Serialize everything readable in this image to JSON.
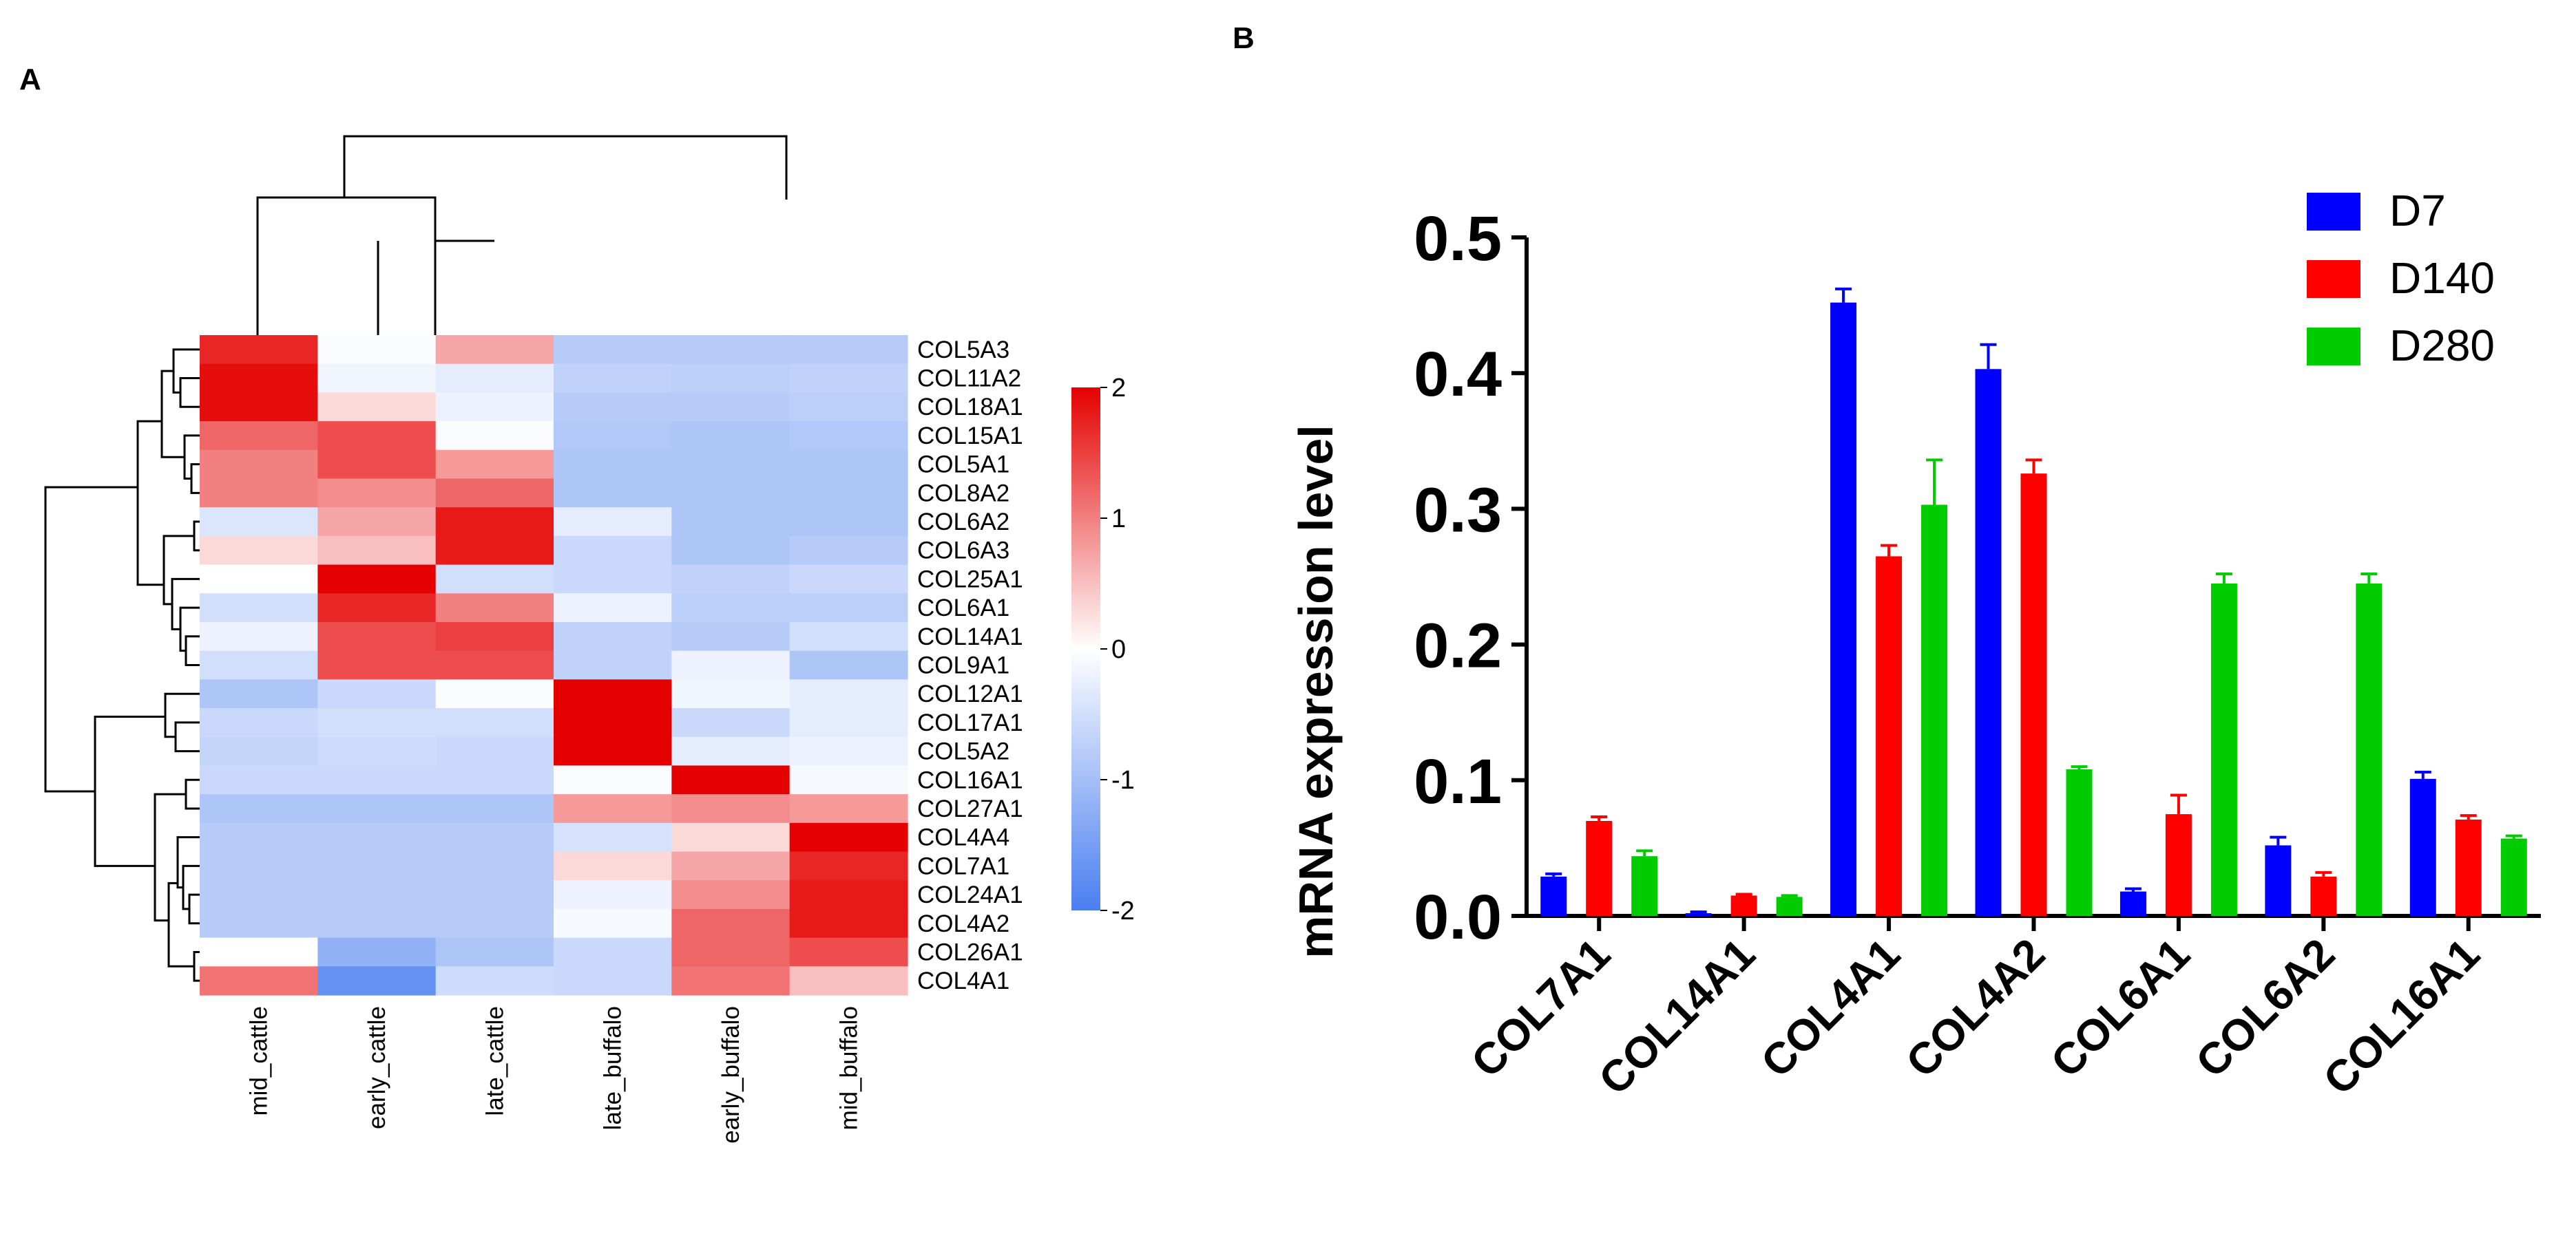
{
  "panel_a_label": "A",
  "panel_b_label": "B",
  "chart_data": [
    {
      "type": "heatmap",
      "title": "",
      "columns": [
        "mid_cattle",
        "early_cattle",
        "late_cattle",
        "late_buffalo",
        "early_buffalo",
        "mid_buffalo"
      ],
      "rows": [
        "COL5A3",
        "COL11A2",
        "COL18A1",
        "COL15A1",
        "COL5A1",
        "COL8A2",
        "COL6A2",
        "COL6A3",
        "COL25A1",
        "COL6A1",
        "COL14A1",
        "COL9A1",
        "COL12A1",
        "COL17A1",
        "COL5A2",
        "COL16A1",
        "COL27A1",
        "COL4A4",
        "COL7A1",
        "COL24A1",
        "COL4A2",
        "COL26A1",
        "COL4A1"
      ],
      "values": [
        [
          1.7,
          -0.05,
          0.7,
          -0.8,
          -0.8,
          -0.8
        ],
        [
          1.9,
          -0.15,
          -0.3,
          -0.7,
          -0.75,
          -0.7
        ],
        [
          1.9,
          0.3,
          -0.2,
          -0.8,
          -0.8,
          -0.75
        ],
        [
          1.2,
          1.4,
          -0.05,
          -0.85,
          -0.9,
          -0.85
        ],
        [
          1.0,
          1.4,
          0.8,
          -0.9,
          -0.9,
          -0.9
        ],
        [
          1.0,
          0.9,
          1.2,
          -0.9,
          -0.9,
          -0.9
        ],
        [
          -0.4,
          0.7,
          1.8,
          -0.3,
          -0.9,
          -0.9
        ],
        [
          0.3,
          0.5,
          1.8,
          -0.6,
          -0.9,
          -0.8
        ],
        [
          0.0,
          2.0,
          -0.5,
          -0.6,
          -0.7,
          -0.6
        ],
        [
          -0.5,
          1.7,
          1.0,
          -0.2,
          -0.75,
          -0.75
        ],
        [
          -0.2,
          1.4,
          1.5,
          -0.7,
          -0.8,
          -0.5
        ],
        [
          -0.5,
          1.4,
          1.4,
          -0.7,
          -0.2,
          -0.9
        ],
        [
          -0.9,
          -0.6,
          -0.05,
          2.0,
          -0.15,
          -0.3
        ],
        [
          -0.6,
          -0.5,
          -0.5,
          2.0,
          -0.6,
          -0.3
        ],
        [
          -0.65,
          -0.55,
          -0.6,
          2.0,
          -0.3,
          -0.2
        ],
        [
          -0.6,
          -0.6,
          -0.6,
          -0.05,
          2.0,
          -0.1
        ],
        [
          -0.9,
          -0.9,
          -0.9,
          0.8,
          0.9,
          0.8
        ],
        [
          -0.8,
          -0.8,
          -0.8,
          -0.45,
          0.3,
          2.0
        ],
        [
          -0.8,
          -0.8,
          -0.8,
          0.3,
          0.7,
          1.7
        ],
        [
          -0.8,
          -0.8,
          -0.8,
          -0.2,
          0.9,
          1.8
        ],
        [
          -0.8,
          -0.8,
          -0.8,
          -0.1,
          1.2,
          1.8
        ],
        [
          0.0,
          -1.2,
          -0.9,
          -0.6,
          1.2,
          1.4
        ],
        [
          1.1,
          -1.7,
          -0.55,
          -0.6,
          1.1,
          0.5
        ]
      ],
      "colorbar": {
        "min": -2,
        "max": 2,
        "ticks": [
          2,
          1,
          0,
          -1,
          -2
        ],
        "colors": [
          "#4a7ef0",
          "#ffffff",
          "#e50000"
        ]
      }
    },
    {
      "type": "bar",
      "title": "",
      "xlabel": "",
      "ylabel": "mRNA expression level",
      "ylim": [
        0,
        0.5
      ],
      "yticks": [
        "0.0",
        "0.1",
        "0.2",
        "0.3",
        "0.4",
        "0.5"
      ],
      "categories": [
        "COL7A1",
        "COL14A1",
        "COL4A1",
        "COL4A2",
        "COL6A1",
        "COL6A2",
        "COL16A1"
      ],
      "series": [
        {
          "name": "D7",
          "color": "#0000ff",
          "values": [
            0.029,
            0.002,
            0.452,
            0.403,
            0.018,
            0.052,
            0.101
          ],
          "errors": [
            0.002,
            0.001,
            0.01,
            0.018,
            0.002,
            0.006,
            0.005
          ]
        },
        {
          "name": "D140",
          "color": "#ff0000",
          "values": [
            0.07,
            0.015,
            0.265,
            0.326,
            0.075,
            0.029,
            0.071
          ],
          "errors": [
            0.003,
            0.001,
            0.008,
            0.01,
            0.014,
            0.003,
            0.003
          ]
        },
        {
          "name": "D280",
          "color": "#00cc00",
          "values": [
            0.044,
            0.014,
            0.303,
            0.108,
            0.245,
            0.245,
            0.057
          ],
          "errors": [
            0.004,
            0.001,
            0.033,
            0.002,
            0.007,
            0.007,
            0.002
          ]
        }
      ],
      "legend_position": "top-right"
    }
  ]
}
